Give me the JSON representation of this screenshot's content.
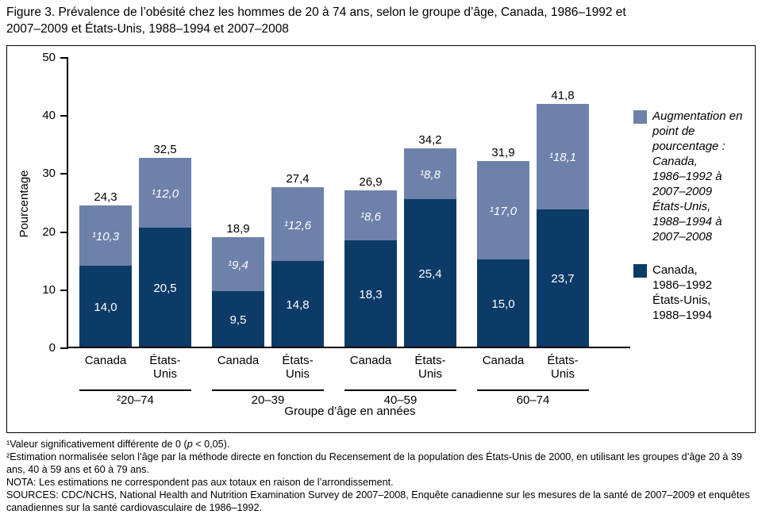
{
  "title": "Figure 3. Prévalence de l’obésité chez les hommes de 20 à 74 ans, selon le groupe d’âge, Canada, 1986–1992 et\n2007–2009 et États-Unis, 1988–1994 et 2007–2008",
  "chart_data": {
    "type": "bar",
    "stacked": true,
    "title": "Figure 3. Prévalence de l’obésité chez les hommes de 20 à 74 ans, selon le groupe d’âge, Canada, 1986–1992 et 2007–2009 et États-Unis, 1988–1994 et 2007–2008",
    "ylabel": "Pourcentage",
    "xlabel": "Groupe d’âge en années",
    "ylim": [
      0,
      50
    ],
    "yticks": [
      0,
      10,
      20,
      30,
      40,
      50
    ],
    "grid": false,
    "legend_position": "right",
    "colors": {
      "base": "#0c3b68",
      "increase": "#6e81ab"
    },
    "legend": [
      {
        "label": "Augmentation en\npoint de\npourcentage :\nCanada,\n1986–1992 à\n2007–2009\nÉtats-Unis,\n1988–1994 à\n2007–2008",
        "color": "#6e81ab",
        "style": "italic"
      },
      {
        "label": "Canada,\n1986–1992\nÉtats-Unis,\n1988–1994",
        "color": "#0c3b68",
        "style": "normal"
      }
    ],
    "groups": [
      {
        "age": "²20–74",
        "bars": [
          {
            "country": "Canada",
            "base": 14.0,
            "increase": 10.3,
            "base_label": "14,0",
            "increase_label": "¹10,3",
            "total_label": "24,3"
          },
          {
            "country": "États-\nUnis",
            "base": 20.5,
            "increase": 12.0,
            "base_label": "20,5",
            "increase_label": "¹12,0",
            "total_label": "32,5"
          }
        ]
      },
      {
        "age": "20–39",
        "bars": [
          {
            "country": "Canada",
            "base": 9.5,
            "increase": 9.4,
            "base_label": "9,5",
            "increase_label": "¹9,4",
            "total_label": "18,9"
          },
          {
            "country": "États-\nUnis",
            "base": 14.8,
            "increase": 12.6,
            "base_label": "14,8",
            "increase_label": "¹12,6",
            "total_label": "27,4"
          }
        ]
      },
      {
        "age": "40–59",
        "bars": [
          {
            "country": "Canada",
            "base": 18.3,
            "increase": 8.6,
            "base_label": "18,3",
            "increase_label": "¹8,6",
            "total_label": "26,9"
          },
          {
            "country": "États-\nUnis",
            "base": 25.4,
            "increase": 8.8,
            "base_label": "25,4",
            "increase_label": "¹8,8",
            "total_label": "34,2"
          }
        ]
      },
      {
        "age": "60–74",
        "bars": [
          {
            "country": "Canada",
            "base": 15.0,
            "increase": 17.0,
            "base_label": "15,0",
            "increase_label": "¹17,0",
            "total_label": "31,9"
          },
          {
            "country": "États-\nUnis",
            "base": 23.7,
            "increase": 18.1,
            "base_label": "23,7",
            "increase_label": "¹18,1",
            "total_label": "41,8"
          }
        ]
      }
    ]
  },
  "footnotes": {
    "f1_pre": "¹Valeur significativement différente de 0 (",
    "f1_p": "p",
    "f1_post": " < 0,05).",
    "f2": "²Estimation normalisée selon l’âge par la méthode directe en fonction du Recensement de la population des États-Unis de 2000, en utilisant les groupes d’âge 20 à 39 ans, 40 à 59 ans et 60 à 79 ans.",
    "f3": "NOTA: Les estimations ne correspondent pas aux totaux en raison de l’arrondissement.",
    "f4": "SOURCES: CDC/NCHS, National Health and Nutrition Examination Survey de 2007–2008, Enquête canadienne sur les mesures de la santé de 2007–2009 et enquêtes canadiennes sur la santé cardiovasculaire de 1986–1992."
  }
}
